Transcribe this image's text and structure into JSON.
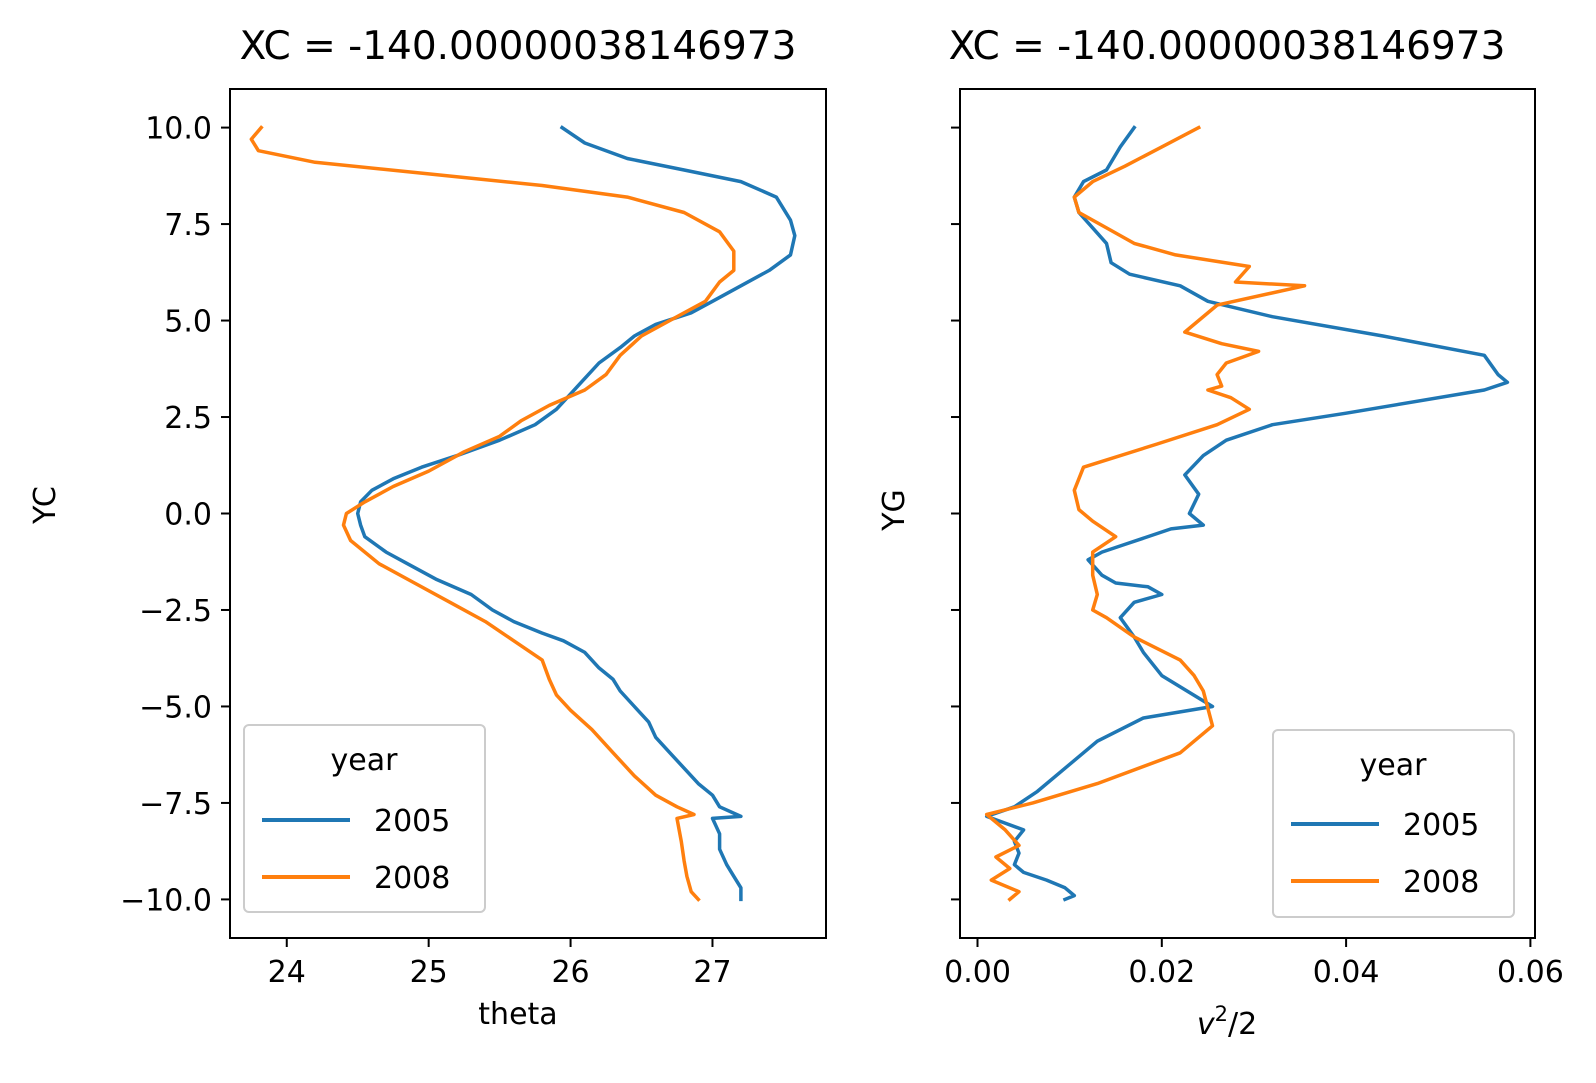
{
  "figure": {
    "titles": [
      "XC = -140.00000038146973",
      "XC = -140.00000038146973"
    ],
    "legend": {
      "title": "year",
      "entries": [
        "2005",
        "2008"
      ]
    }
  },
  "colors": {
    "2005": "#1f77b4",
    "2008": "#ff7f0e"
  },
  "chart_data": [
    {
      "type": "line",
      "title": "XC = -140.00000038146973",
      "xlabel": "theta",
      "ylabel": "YC",
      "xlim": [
        23.6,
        27.8
      ],
      "ylim": [
        -11.0,
        11.0
      ],
      "xticks": [
        "24",
        "25",
        "26",
        "27"
      ],
      "yticks": [
        "10.0",
        "7.5",
        "5.0",
        "2.5",
        "0.0",
        "−2.5",
        "−5.0",
        "−7.5",
        "−10.0"
      ],
      "legend_title": "year",
      "legend_position": "lower-left",
      "series": [
        {
          "name": "2005",
          "x": [
            25.94,
            26.1,
            26.4,
            26.8,
            27.2,
            27.45,
            27.55,
            27.58,
            27.55,
            27.4,
            27.2,
            27.0,
            26.85,
            26.6,
            26.45,
            26.35,
            26.2,
            26.1,
            26.0,
            25.9,
            25.75,
            25.5,
            25.2,
            24.95,
            24.75,
            24.6,
            24.52,
            24.5,
            24.52,
            24.55,
            24.7,
            24.85,
            25.05,
            25.3,
            25.45,
            25.6,
            25.8,
            25.95,
            26.1,
            26.2,
            26.3,
            26.35,
            26.45,
            26.55,
            26.6,
            26.7,
            26.8,
            26.9,
            27.0,
            27.05,
            27.2,
            27.0,
            27.05,
            27.05,
            27.1,
            27.15,
            27.2,
            27.2
          ],
          "y": [
            10.0,
            9.6,
            9.2,
            8.9,
            8.6,
            8.2,
            7.6,
            7.2,
            6.7,
            6.3,
            5.9,
            5.5,
            5.2,
            4.9,
            4.6,
            4.3,
            3.9,
            3.5,
            3.1,
            2.7,
            2.3,
            1.9,
            1.5,
            1.2,
            0.9,
            0.6,
            0.3,
            0.0,
            -0.3,
            -0.6,
            -1.0,
            -1.3,
            -1.7,
            -2.1,
            -2.5,
            -2.8,
            -3.1,
            -3.3,
            -3.6,
            -4.0,
            -4.3,
            -4.6,
            -5.0,
            -5.4,
            -5.8,
            -6.2,
            -6.6,
            -7.0,
            -7.3,
            -7.6,
            -7.85,
            -7.9,
            -8.3,
            -8.7,
            -9.1,
            -9.4,
            -9.7,
            -10.0
          ]
        },
        {
          "name": "2008",
          "x": [
            23.82,
            23.75,
            23.8,
            24.2,
            25.0,
            25.8,
            26.4,
            26.8,
            27.05,
            27.15,
            27.15,
            27.05,
            26.95,
            26.7,
            26.5,
            26.35,
            26.25,
            26.1,
            25.85,
            25.65,
            25.5,
            25.25,
            25.0,
            24.75,
            24.55,
            24.42,
            24.4,
            24.45,
            24.65,
            24.9,
            25.15,
            25.4,
            25.6,
            25.8,
            25.85,
            25.9,
            26.0,
            26.15,
            26.3,
            26.45,
            26.6,
            26.75,
            26.87,
            26.75,
            26.78,
            26.8,
            26.82,
            26.85,
            26.9
          ],
          "y": [
            10.0,
            9.7,
            9.4,
            9.1,
            8.8,
            8.5,
            8.2,
            7.8,
            7.3,
            6.8,
            6.3,
            6.0,
            5.5,
            5.0,
            4.6,
            4.1,
            3.6,
            3.2,
            2.8,
            2.4,
            2.0,
            1.6,
            1.1,
            0.7,
            0.3,
            0.0,
            -0.3,
            -0.7,
            -1.3,
            -1.8,
            -2.3,
            -2.8,
            -3.3,
            -3.8,
            -4.3,
            -4.7,
            -5.1,
            -5.6,
            -6.2,
            -6.8,
            -7.3,
            -7.6,
            -7.8,
            -7.9,
            -8.5,
            -9.0,
            -9.4,
            -9.8,
            -10.0
          ]
        }
      ]
    },
    {
      "type": "line",
      "title": "XC = -140.00000038146973",
      "xlabel": "v²/2",
      "ylabel": "YG",
      "xlim": [
        -0.0019,
        0.0605
      ],
      "ylim": [
        -11.0,
        11.0
      ],
      "xticks": [
        "0.00",
        "0.02",
        "0.04",
        "0.06"
      ],
      "legend_title": "year",
      "legend_position": "lower-right",
      "series": [
        {
          "name": "2005",
          "x": [
            0.017,
            0.0155,
            0.014,
            0.0115,
            0.0105,
            0.011,
            0.0125,
            0.014,
            0.0145,
            0.0165,
            0.022,
            0.025,
            0.032,
            0.044,
            0.055,
            0.0565,
            0.0575,
            0.055,
            0.04,
            0.032,
            0.027,
            0.0245,
            0.0225,
            0.024,
            0.023,
            0.0245,
            0.021,
            0.016,
            0.0135,
            0.012,
            0.0135,
            0.015,
            0.0185,
            0.02,
            0.017,
            0.0155,
            0.017,
            0.018,
            0.02,
            0.0255,
            0.018,
            0.013,
            0.01,
            0.0065,
            0.004,
            0.001,
            0.005,
            0.004,
            0.0045,
            0.004,
            0.005,
            0.0075,
            0.0095,
            0.0105,
            0.0095
          ],
          "y": [
            10.0,
            9.5,
            8.9,
            8.6,
            8.2,
            7.8,
            7.4,
            7.0,
            6.5,
            6.2,
            5.9,
            5.5,
            5.1,
            4.6,
            4.1,
            3.6,
            3.4,
            3.2,
            2.6,
            2.3,
            1.9,
            1.5,
            1.0,
            0.5,
            0.0,
            -0.3,
            -0.4,
            -0.8,
            -1.0,
            -1.2,
            -1.6,
            -1.8,
            -1.9,
            -2.1,
            -2.3,
            -2.7,
            -3.2,
            -3.6,
            -4.2,
            -5.0,
            -5.3,
            -5.9,
            -6.5,
            -7.2,
            -7.6,
            -7.85,
            -8.2,
            -8.5,
            -8.8,
            -9.1,
            -9.3,
            -9.5,
            -9.7,
            -9.9,
            -10.0
          ]
        },
        {
          "name": "2008",
          "x": [
            0.024,
            0.02,
            0.016,
            0.0125,
            0.0105,
            0.011,
            0.014,
            0.017,
            0.0215,
            0.0295,
            0.028,
            0.0355,
            0.026,
            0.024,
            0.0225,
            0.0265,
            0.0305,
            0.027,
            0.026,
            0.0265,
            0.025,
            0.0275,
            0.0295,
            0.026,
            0.0195,
            0.0115,
            0.0105,
            0.011,
            0.0125,
            0.015,
            0.0125,
            0.0125,
            0.013,
            0.0125,
            0.014,
            0.017,
            0.022,
            0.0235,
            0.0245,
            0.0255,
            0.022,
            0.013,
            0.006,
            0.001,
            0.003,
            0.0045,
            0.002,
            0.0035,
            0.0015,
            0.0045,
            0.0035
          ],
          "y": [
            10.0,
            9.5,
            9.0,
            8.6,
            8.2,
            7.8,
            7.4,
            7.0,
            6.7,
            6.4,
            6.0,
            5.9,
            5.4,
            5.0,
            4.7,
            4.4,
            4.2,
            3.9,
            3.6,
            3.3,
            3.2,
            3.0,
            2.7,
            2.3,
            1.8,
            1.2,
            0.6,
            0.1,
            -0.2,
            -0.6,
            -1.0,
            -1.6,
            -2.1,
            -2.5,
            -2.7,
            -3.2,
            -3.8,
            -4.2,
            -4.6,
            -5.5,
            -6.2,
            -7.0,
            -7.5,
            -7.8,
            -8.2,
            -8.6,
            -8.9,
            -9.2,
            -9.5,
            -9.8,
            -10.0
          ]
        }
      ]
    }
  ]
}
